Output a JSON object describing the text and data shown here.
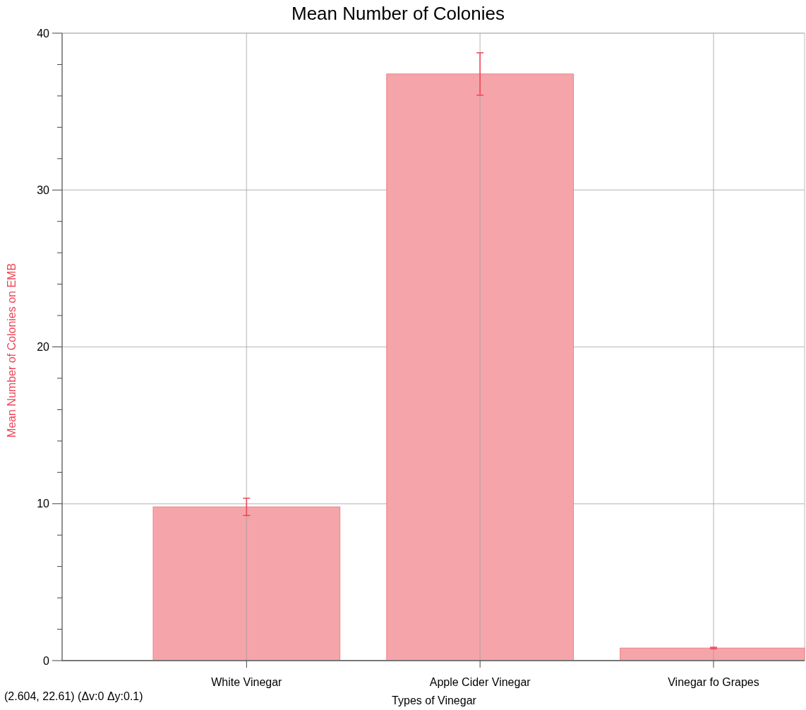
{
  "chart_data": {
    "type": "bar",
    "title": "Mean Number of Colonies",
    "xlabel": "Types of Vinegar",
    "ylabel": "Mean Number of Colonies on EMB",
    "categories": [
      "White Vinegar",
      "Apple Cider Vinegar",
      "Vinegar fo Grapes"
    ],
    "values": [
      9.8,
      37.4,
      0.8
    ],
    "errors": [
      0.55,
      1.35,
      0.05
    ],
    "color": "#f5a5aa",
    "ylim": [
      0,
      40
    ],
    "yticks": [
      0,
      {
        "value": 2,
        "label": null
      },
      {
        "value": 4,
        "label": null
      },
      {
        "value": 6,
        "label": null
      },
      {
        "value": 8,
        "label": null
      },
      10,
      {
        "value": 12,
        "label": null
      },
      {
        "value": 14,
        "label": null
      },
      {
        "value": 16,
        "label": null
      },
      {
        "value": 18,
        "label": null
      },
      20,
      {
        "value": 22,
        "label": null
      },
      {
        "value": 24,
        "label": null
      },
      {
        "value": 26,
        "label": null
      },
      {
        "value": 28,
        "label": null
      },
      30,
      {
        "value": 32,
        "label": null
      },
      {
        "value": 34,
        "label": null
      },
      {
        "value": 36,
        "label": null
      },
      {
        "value": 38,
        "label": null
      },
      40
    ],
    "grid": true,
    "annotations": [
      "(2.604, 22.61) (Δv:0 Δy:0.1)"
    ]
  }
}
